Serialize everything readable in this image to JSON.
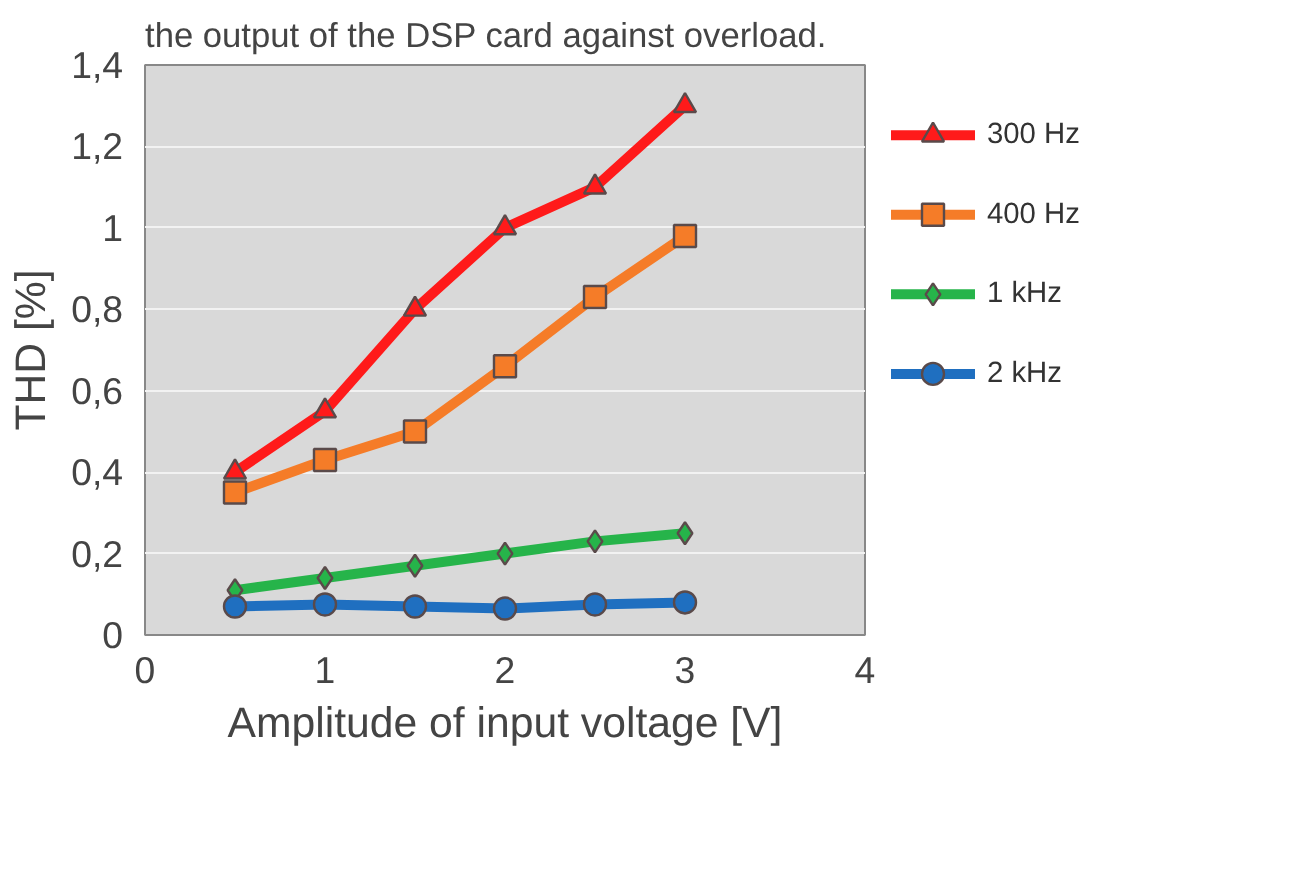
{
  "chart_data": {
    "type": "line",
    "annotations": [
      "the output of the DSP card against overload."
    ],
    "xlabel": "Amplitude of input voltage [V]",
    "ylabel": "THD [%]",
    "x": [
      0.5,
      1,
      1.5,
      2,
      2.5,
      3
    ],
    "series": [
      {
        "name": "300 Hz",
        "color": "#ff1a1a",
        "marker": "triangle",
        "values": [
          0.4,
          0.55,
          0.8,
          1.0,
          1.1,
          1.3
        ]
      },
      {
        "name": "400 Hz",
        "color": "#f57c28",
        "marker": "square",
        "values": [
          0.35,
          0.43,
          0.5,
          0.66,
          0.83,
          0.98
        ]
      },
      {
        "name": "1 kHz",
        "color": "#26b44a",
        "marker": "diamond",
        "values": [
          0.11,
          0.14,
          0.17,
          0.2,
          0.23,
          0.25
        ]
      },
      {
        "name": "2 kHz",
        "color": "#1f6fc0",
        "marker": "circle",
        "values": [
          0.07,
          0.075,
          0.07,
          0.065,
          0.075,
          0.08
        ]
      }
    ],
    "xlim": [
      0,
      4
    ],
    "xticks": [
      0,
      1,
      2,
      3,
      4
    ],
    "ylim": [
      0,
      1.4
    ],
    "yticks": [
      0,
      {
        "value": 0.2,
        "label": "0,2"
      },
      {
        "value": 0.4,
        "label": "0,4"
      },
      {
        "value": 0.6,
        "label": "0,6"
      },
      {
        "value": 0.8,
        "label": "0,8"
      },
      1,
      {
        "value": 1.2,
        "label": "1,2"
      },
      {
        "value": 1.4,
        "label": "1,4"
      }
    ],
    "grid": "y",
    "legend": "right",
    "line_style": "solid"
  }
}
